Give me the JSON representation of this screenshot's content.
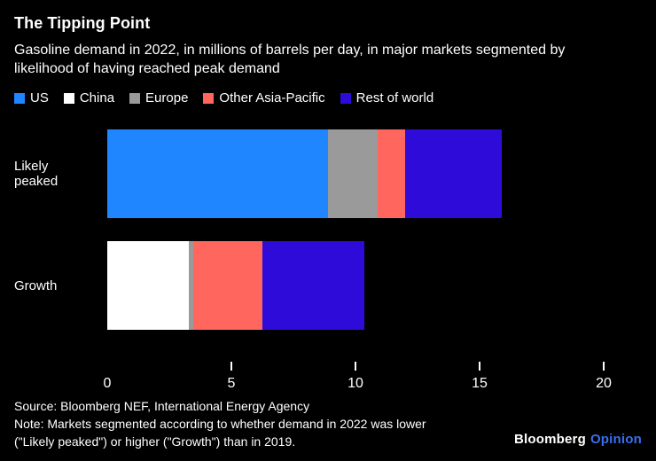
{
  "header": {
    "title": "The Tipping Point",
    "subtitle": "Gasoline demand in 2022, in millions of barrels per day, in major markets segmented by likelihood of having reached peak demand"
  },
  "chart_data": {
    "type": "bar",
    "orientation": "horizontal",
    "stacked": true,
    "unit": "millions of barrels per day",
    "categories": [
      "Likely peaked",
      "Growth"
    ],
    "series": [
      {
        "name": "US",
        "color": "#1f86ff",
        "values": [
          8.9,
          0
        ]
      },
      {
        "name": "China",
        "color": "#ffffff",
        "values": [
          0,
          3.3
        ]
      },
      {
        "name": "Europe",
        "color": "#9a9a9a",
        "values": [
          2.0,
          0.15
        ]
      },
      {
        "name": "Other Asia-Pacific",
        "color": "#ff665e",
        "values": [
          1.1,
          2.8
        ]
      },
      {
        "name": "Rest of world",
        "color": "#2f0bd9",
        "values": [
          3.9,
          4.1
        ]
      }
    ],
    "xlim": [
      0,
      20
    ],
    "xticks": [
      0,
      5,
      10,
      15,
      20
    ],
    "legend_position": "top-left",
    "grid": false
  },
  "footer": {
    "source": "Source: Bloomberg NEF, International Energy Agency",
    "note": "Note: Markets segmented according to whether demand in 2022 was lower (\"Likely peaked\") or higher (\"Growth\") than in 2019.",
    "brand": "Bloomberg",
    "brand_suffix": "Opinion"
  },
  "colors": {
    "background": "#000000",
    "text": "#ffffff",
    "opinion_accent": "#3a6ef0"
  }
}
